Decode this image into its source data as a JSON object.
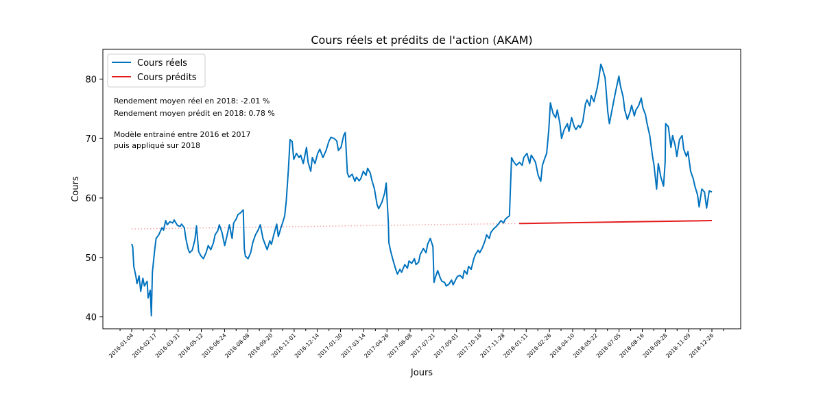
{
  "chart_data": {
    "type": "line",
    "title": "Cours réels et prédits de l'action (AKAM)",
    "xlabel": "Jours",
    "ylabel": "Cours",
    "x_range": [
      "2016-01-04",
      "2018-12-31"
    ],
    "ylim": [
      38,
      85
    ],
    "yticks": [
      40,
      50,
      60,
      70,
      80
    ],
    "xtick_labels": [
      "2016-01-04",
      "2016-02-17",
      "2016-03-31",
      "2016-05-12",
      "2016-06-24",
      "2016-08-08",
      "2016-09-20",
      "2016-11-01",
      "2016-12-14",
      "2017-01-30",
      "2017-03-14",
      "2017-04-26",
      "2017-06-08",
      "2017-07-21",
      "2017-09-01",
      "2017-10-16",
      "2017-11-28",
      "2018-01-11",
      "2018-02-26",
      "2018-04-10",
      "2018-05-22",
      "2018-07-05",
      "2018-08-16",
      "2018-09-28",
      "2018-11-09",
      "2018-12-26"
    ],
    "grid": false,
    "legend_position": "top-left",
    "annotations": [
      "Rendement moyen réel en 2018: -2.01 %",
      "Rendement moyen prédit en 2018: 0.78 %",
      "Modèle entrainé entre 2016 et 2017",
      "puis appliqué sur 2018"
    ],
    "series": [
      {
        "name": "Cours réels",
        "color": "#0072bd",
        "style": "solid",
        "points": [
          [
            "2016-01-04",
            52.3
          ],
          [
            "2016-01-06",
            51.8
          ],
          [
            "2016-01-08",
            48.5
          ],
          [
            "2016-01-12",
            46.8
          ],
          [
            "2016-01-14",
            45.6
          ],
          [
            "2016-01-18",
            46.9
          ],
          [
            "2016-01-21",
            44.3
          ],
          [
            "2016-01-25",
            46.5
          ],
          [
            "2016-01-28",
            45.2
          ],
          [
            "2016-02-02",
            46.0
          ],
          [
            "2016-02-04",
            43.2
          ],
          [
            "2016-02-08",
            44.5
          ],
          [
            "2016-02-10",
            40.2
          ],
          [
            "2016-02-12",
            47.5
          ],
          [
            "2016-02-16",
            51.0
          ],
          [
            "2016-02-19",
            53.2
          ],
          [
            "2016-02-24",
            53.8
          ],
          [
            "2016-03-01",
            55.0
          ],
          [
            "2016-03-04",
            54.6
          ],
          [
            "2016-03-08",
            56.2
          ],
          [
            "2016-03-11",
            55.5
          ],
          [
            "2016-03-16",
            56.0
          ],
          [
            "2016-03-21",
            55.8
          ],
          [
            "2016-03-24",
            56.3
          ],
          [
            "2016-03-30",
            55.4
          ],
          [
            "2016-04-04",
            55.2
          ],
          [
            "2016-04-07",
            55.6
          ],
          [
            "2016-04-12",
            55.0
          ],
          [
            "2016-04-15",
            53.2
          ],
          [
            "2016-04-19",
            51.5
          ],
          [
            "2016-04-22",
            50.8
          ],
          [
            "2016-04-27",
            51.2
          ],
          [
            "2016-05-02",
            53.0
          ],
          [
            "2016-05-05",
            55.3
          ],
          [
            "2016-05-09",
            51.0
          ],
          [
            "2016-05-13",
            50.3
          ],
          [
            "2016-05-18",
            49.8
          ],
          [
            "2016-05-23",
            50.8
          ],
          [
            "2016-05-27",
            52.0
          ],
          [
            "2016-06-01",
            51.3
          ],
          [
            "2016-06-06",
            52.5
          ],
          [
            "2016-06-09",
            53.8
          ],
          [
            "2016-06-14",
            54.5
          ],
          [
            "2016-06-17",
            55.5
          ],
          [
            "2016-06-22",
            54.2
          ],
          [
            "2016-06-27",
            52.0
          ],
          [
            "2016-07-01",
            53.5
          ],
          [
            "2016-07-06",
            55.5
          ],
          [
            "2016-07-11",
            53.2
          ],
          [
            "2016-07-14",
            55.8
          ],
          [
            "2016-07-19",
            56.5
          ],
          [
            "2016-07-22",
            57.2
          ],
          [
            "2016-07-27",
            57.5
          ],
          [
            "2016-08-01",
            58.0
          ],
          [
            "2016-08-03",
            51.5
          ],
          [
            "2016-08-05",
            50.2
          ],
          [
            "2016-08-10",
            49.8
          ],
          [
            "2016-08-15",
            50.8
          ],
          [
            "2016-08-19",
            52.5
          ],
          [
            "2016-08-24",
            53.8
          ],
          [
            "2016-08-29",
            54.6
          ],
          [
            "2016-09-02",
            55.5
          ],
          [
            "2016-09-07",
            53.2
          ],
          [
            "2016-09-12",
            52.0
          ],
          [
            "2016-09-15",
            51.3
          ],
          [
            "2016-09-20",
            52.8
          ],
          [
            "2016-09-23",
            52.2
          ],
          [
            "2016-09-28",
            54.0
          ],
          [
            "2016-10-03",
            55.6
          ],
          [
            "2016-10-06",
            53.5
          ],
          [
            "2016-10-11",
            55.0
          ],
          [
            "2016-10-14",
            55.8
          ],
          [
            "2016-10-18",
            57.0
          ],
          [
            "2016-10-21",
            59.5
          ],
          [
            "2016-10-25",
            64.8
          ],
          [
            "2016-10-28",
            69.8
          ],
          [
            "2016-11-01",
            69.5
          ],
          [
            "2016-11-04",
            66.5
          ],
          [
            "2016-11-09",
            67.5
          ],
          [
            "2016-11-14",
            66.8
          ],
          [
            "2016-11-17",
            67.2
          ],
          [
            "2016-11-22",
            65.8
          ],
          [
            "2016-11-28",
            68.5
          ],
          [
            "2016-12-01",
            66.0
          ],
          [
            "2016-12-06",
            64.5
          ],
          [
            "2016-12-09",
            66.8
          ],
          [
            "2016-12-14",
            65.8
          ],
          [
            "2016-12-19",
            67.5
          ],
          [
            "2016-12-23",
            68.2
          ],
          [
            "2016-12-29",
            66.8
          ],
          [
            "2017-01-04",
            68.0
          ],
          [
            "2017-01-09",
            69.5
          ],
          [
            "2017-01-13",
            70.2
          ],
          [
            "2017-01-19",
            70.0
          ],
          [
            "2017-01-24",
            69.6
          ],
          [
            "2017-01-27",
            68.0
          ],
          [
            "2017-02-01",
            68.5
          ],
          [
            "2017-02-06",
            70.5
          ],
          [
            "2017-02-09",
            71.0
          ],
          [
            "2017-02-13",
            64.2
          ],
          [
            "2017-02-16",
            63.5
          ],
          [
            "2017-02-22",
            64.0
          ],
          [
            "2017-02-27",
            62.8
          ],
          [
            "2017-03-02",
            63.5
          ],
          [
            "2017-03-07",
            62.9
          ],
          [
            "2017-03-10",
            63.2
          ],
          [
            "2017-03-15",
            64.5
          ],
          [
            "2017-03-20",
            63.8
          ],
          [
            "2017-03-23",
            65.0
          ],
          [
            "2017-03-28",
            64.2
          ],
          [
            "2017-03-31",
            63.0
          ],
          [
            "2017-04-05",
            61.5
          ],
          [
            "2017-04-10",
            58.8
          ],
          [
            "2017-04-13",
            58.2
          ],
          [
            "2017-04-19",
            59.3
          ],
          [
            "2017-04-24",
            60.8
          ],
          [
            "2017-04-27",
            62.5
          ],
          [
            "2017-05-01",
            56.0
          ],
          [
            "2017-05-02",
            52.5
          ],
          [
            "2017-05-05",
            51.2
          ],
          [
            "2017-05-10",
            49.5
          ],
          [
            "2017-05-15",
            48.0
          ],
          [
            "2017-05-18",
            47.2
          ],
          [
            "2017-05-23",
            48.0
          ],
          [
            "2017-05-26",
            47.5
          ],
          [
            "2017-06-01",
            48.8
          ],
          [
            "2017-06-06",
            48.2
          ],
          [
            "2017-06-09",
            49.4
          ],
          [
            "2017-06-14",
            49.0
          ],
          [
            "2017-06-19",
            49.8
          ],
          [
            "2017-06-22",
            48.8
          ],
          [
            "2017-06-27",
            49.2
          ],
          [
            "2017-06-30",
            50.5
          ],
          [
            "2017-07-06",
            51.5
          ],
          [
            "2017-07-11",
            50.8
          ],
          [
            "2017-07-14",
            52.2
          ],
          [
            "2017-07-19",
            53.2
          ],
          [
            "2017-07-24",
            51.8
          ],
          [
            "2017-07-26",
            45.8
          ],
          [
            "2017-07-28",
            46.5
          ],
          [
            "2017-08-02",
            47.8
          ],
          [
            "2017-08-07",
            46.5
          ],
          [
            "2017-08-10",
            46.0
          ],
          [
            "2017-08-15",
            45.8
          ],
          [
            "2017-08-18",
            45.2
          ],
          [
            "2017-08-23",
            45.5
          ],
          [
            "2017-08-28",
            46.2
          ],
          [
            "2017-08-31",
            45.4
          ],
          [
            "2017-09-05",
            46.3
          ],
          [
            "2017-09-08",
            46.8
          ],
          [
            "2017-09-13",
            47.0
          ],
          [
            "2017-09-18",
            46.5
          ],
          [
            "2017-09-21",
            47.8
          ],
          [
            "2017-09-26",
            47.2
          ],
          [
            "2017-09-29",
            48.5
          ],
          [
            "2017-10-04",
            48.0
          ],
          [
            "2017-10-09",
            49.8
          ],
          [
            "2017-10-12",
            50.5
          ],
          [
            "2017-10-17",
            51.2
          ],
          [
            "2017-10-20",
            50.8
          ],
          [
            "2017-10-25",
            51.6
          ],
          [
            "2017-10-30",
            52.8
          ],
          [
            "2017-11-02",
            53.8
          ],
          [
            "2017-11-07",
            53.2
          ],
          [
            "2017-11-10",
            54.2
          ],
          [
            "2017-11-15",
            54.8
          ],
          [
            "2017-11-20",
            55.2
          ],
          [
            "2017-11-24",
            55.6
          ],
          [
            "2017-11-29",
            56.2
          ],
          [
            "2017-12-04",
            55.8
          ],
          [
            "2017-12-07",
            56.4
          ],
          [
            "2017-12-12",
            56.8
          ],
          [
            "2017-12-15",
            57.0
          ],
          [
            "2017-12-19",
            66.8
          ],
          [
            "2017-12-22",
            66.2
          ],
          [
            "2017-12-28",
            65.5
          ],
          [
            "2018-01-03",
            66.0
          ],
          [
            "2018-01-08",
            65.5
          ],
          [
            "2018-01-11",
            66.8
          ],
          [
            "2018-01-17",
            67.5
          ],
          [
            "2018-01-22",
            65.8
          ],
          [
            "2018-01-25",
            67.2
          ],
          [
            "2018-01-30",
            66.5
          ],
          [
            "2018-02-02",
            66.0
          ],
          [
            "2018-02-07",
            63.8
          ],
          [
            "2018-02-12",
            62.8
          ],
          [
            "2018-02-15",
            65.5
          ],
          [
            "2018-02-20",
            66.8
          ],
          [
            "2018-02-23",
            67.5
          ],
          [
            "2018-02-27",
            71.5
          ],
          [
            "2018-03-02",
            76.0
          ],
          [
            "2018-03-07",
            74.2
          ],
          [
            "2018-03-12",
            73.5
          ],
          [
            "2018-03-15",
            74.8
          ],
          [
            "2018-03-20",
            72.5
          ],
          [
            "2018-03-23",
            70.0
          ],
          [
            "2018-03-28",
            71.5
          ],
          [
            "2018-04-03",
            72.5
          ],
          [
            "2018-04-06",
            71.2
          ],
          [
            "2018-04-11",
            73.5
          ],
          [
            "2018-04-16",
            72.0
          ],
          [
            "2018-04-19",
            71.5
          ],
          [
            "2018-04-24",
            72.2
          ],
          [
            "2018-04-27",
            71.8
          ],
          [
            "2018-05-02",
            72.8
          ],
          [
            "2018-05-07",
            75.8
          ],
          [
            "2018-05-10",
            76.5
          ],
          [
            "2018-05-15",
            75.5
          ],
          [
            "2018-05-18",
            77.2
          ],
          [
            "2018-05-23",
            76.2
          ],
          [
            "2018-05-29",
            78.5
          ],
          [
            "2018-06-01",
            80.0
          ],
          [
            "2018-06-05",
            82.5
          ],
          [
            "2018-06-08",
            81.8
          ],
          [
            "2018-06-13",
            80.2
          ],
          [
            "2018-06-18",
            74.5
          ],
          [
            "2018-06-21",
            72.5
          ],
          [
            "2018-06-26",
            74.8
          ],
          [
            "2018-06-29",
            76.2
          ],
          [
            "2018-07-03",
            78.0
          ],
          [
            "2018-07-09",
            80.5
          ],
          [
            "2018-07-12",
            78.8
          ],
          [
            "2018-07-17",
            77.0
          ],
          [
            "2018-07-20",
            74.8
          ],
          [
            "2018-07-25",
            73.2
          ],
          [
            "2018-07-30",
            74.5
          ],
          [
            "2018-08-02",
            75.6
          ],
          [
            "2018-08-07",
            73.8
          ],
          [
            "2018-08-10",
            74.8
          ],
          [
            "2018-08-15",
            75.5
          ],
          [
            "2018-08-20",
            76.8
          ],
          [
            "2018-08-23",
            75.2
          ],
          [
            "2018-08-28",
            74.0
          ],
          [
            "2018-08-31",
            72.5
          ],
          [
            "2018-09-05",
            70.5
          ],
          [
            "2018-09-10",
            67.2
          ],
          [
            "2018-09-13",
            65.5
          ],
          [
            "2018-09-18",
            61.5
          ],
          [
            "2018-09-21",
            65.8
          ],
          [
            "2018-09-26",
            63.5
          ],
          [
            "2018-10-01",
            62.0
          ],
          [
            "2018-10-04",
            66.0
          ],
          [
            "2018-10-05",
            72.5
          ],
          [
            "2018-10-10",
            72.0
          ],
          [
            "2018-10-15",
            68.5
          ],
          [
            "2018-10-18",
            70.5
          ],
          [
            "2018-10-23",
            68.8
          ],
          [
            "2018-10-26",
            67.0
          ],
          [
            "2018-10-31",
            69.8
          ],
          [
            "2018-11-05",
            70.5
          ],
          [
            "2018-11-08",
            68.2
          ],
          [
            "2018-11-13",
            67.0
          ],
          [
            "2018-11-16",
            67.8
          ],
          [
            "2018-11-21",
            64.5
          ],
          [
            "2018-11-26",
            63.2
          ],
          [
            "2018-11-29",
            62.0
          ],
          [
            "2018-12-04",
            60.5
          ],
          [
            "2018-12-07",
            58.5
          ],
          [
            "2018-12-12",
            61.5
          ],
          [
            "2018-12-17",
            61.0
          ],
          [
            "2018-12-21",
            58.3
          ],
          [
            "2018-12-26",
            61.2
          ],
          [
            "2018-12-31",
            61.0
          ]
        ]
      },
      {
        "name": "Cours prédits",
        "color": "#e41a1c",
        "style": "solid",
        "points": [
          [
            "2018-01-02",
            55.7
          ],
          [
            "2018-12-31",
            56.2
          ]
        ]
      },
      {
        "name": "",
        "color": "#f4a0a0",
        "style": "dotted",
        "points": [
          [
            "2016-01-04",
            54.8
          ],
          [
            "2017-12-29",
            55.7
          ]
        ]
      }
    ]
  }
}
